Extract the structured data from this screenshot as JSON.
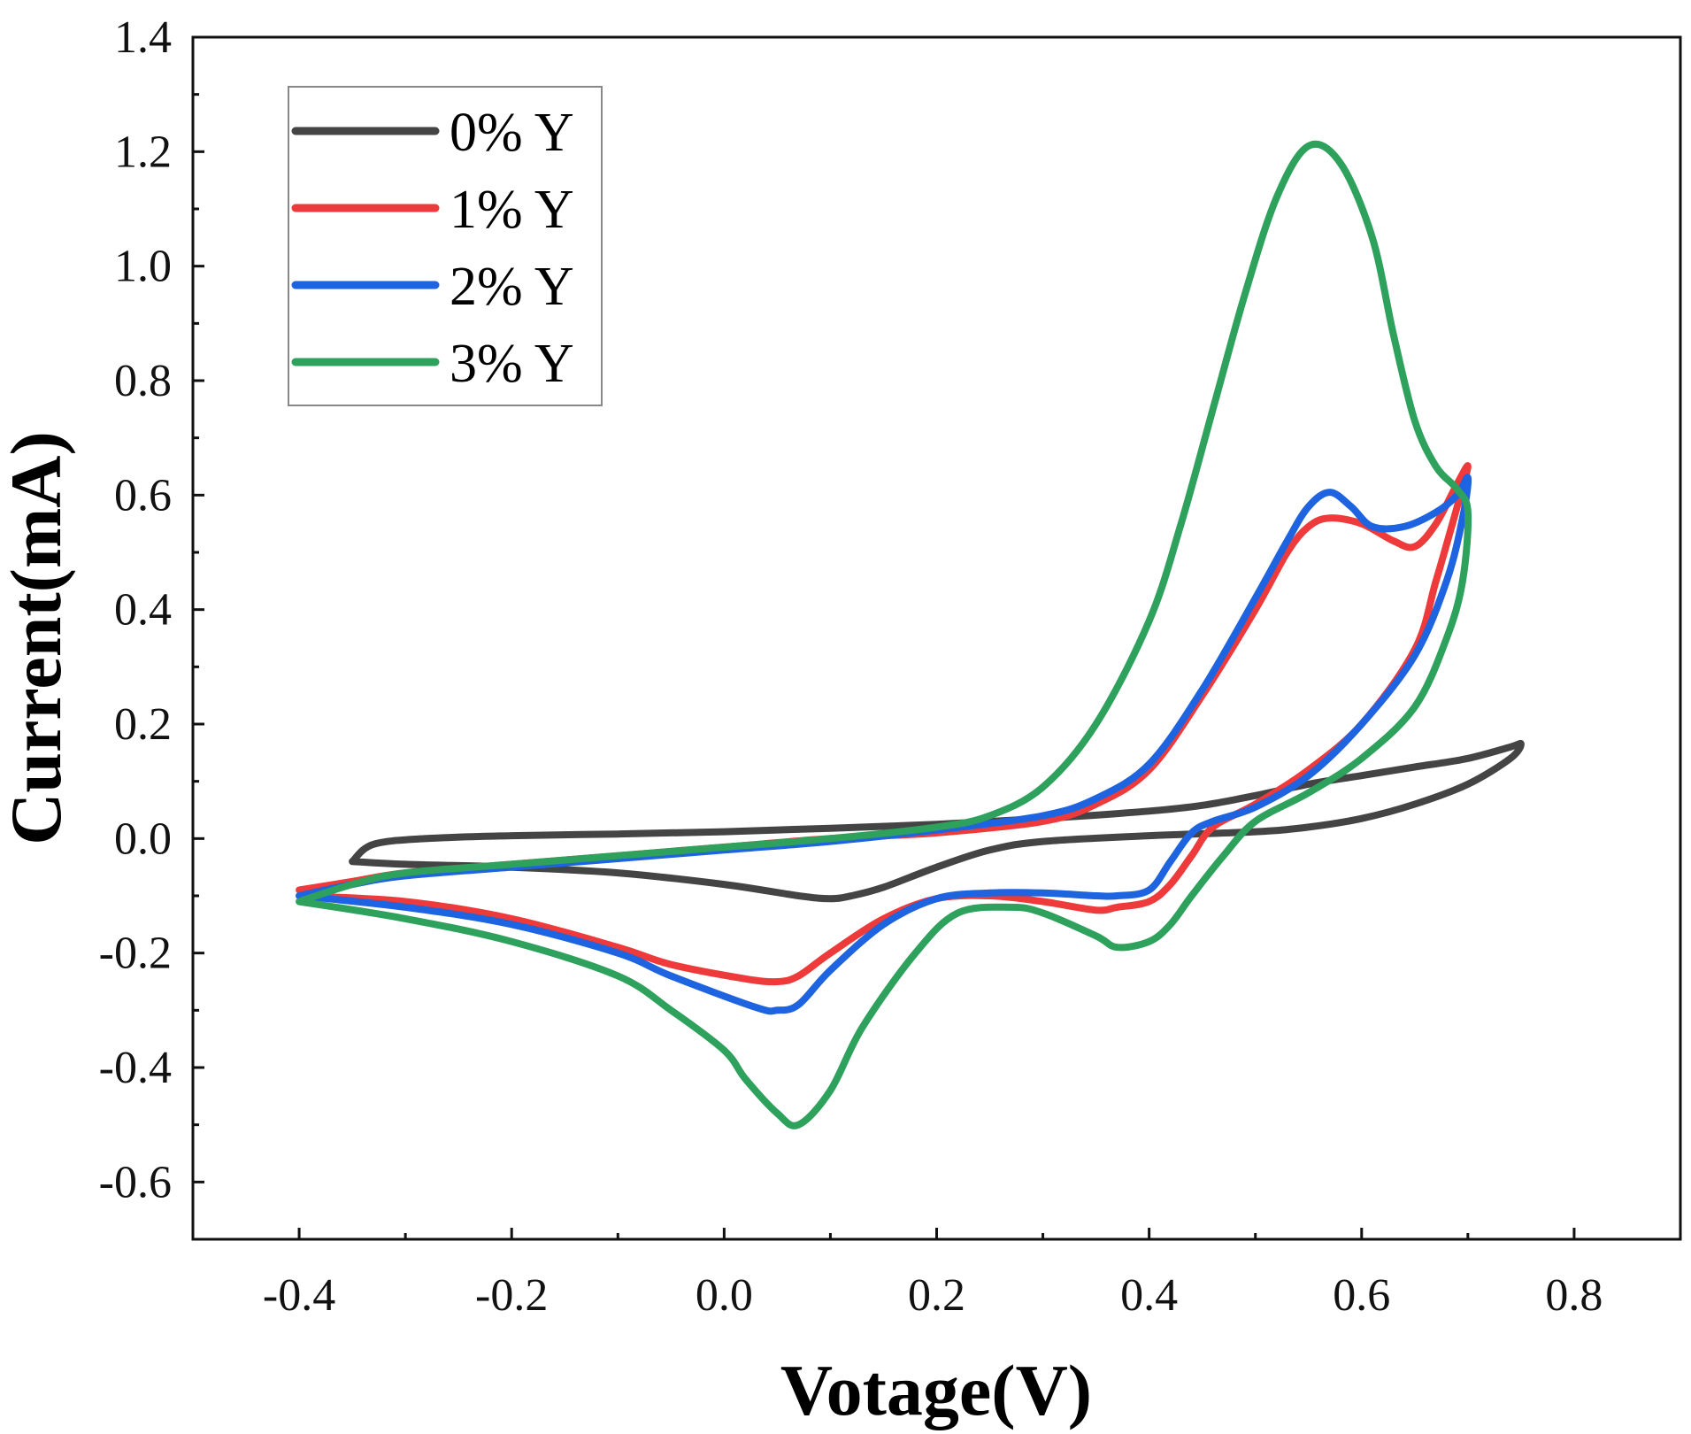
{
  "chart_data": {
    "type": "line",
    "title": "",
    "xlabel": "Votage(V)",
    "ylabel": "Current(mA)",
    "xlim": [
      -0.5,
      0.9
    ],
    "ylim": [
      -0.7,
      1.4
    ],
    "xticks": [
      "-0.4",
      "-0.2",
      "0.0",
      "0.2",
      "0.4",
      "0.6",
      "0.8"
    ],
    "xtick_values": [
      -0.4,
      -0.2,
      0.0,
      0.2,
      0.4,
      0.6,
      0.8
    ],
    "yticks": [
      "-0.6",
      "-0.4",
      "-0.2",
      "0.0",
      "0.2",
      "0.4",
      "0.6",
      "0.8",
      "1.0",
      "1.2",
      "1.4"
    ],
    "ytick_values": [
      -0.6,
      -0.4,
      -0.2,
      0.0,
      0.2,
      0.4,
      0.6,
      0.8,
      1.0,
      1.2,
      1.4
    ],
    "grid": false,
    "legend_position": "top-left",
    "series": [
      {
        "name": "0% Y",
        "color": "#444444",
        "points": [
          [
            -0.35,
            -0.04
          ],
          [
            -0.33,
            -0.01
          ],
          [
            -0.28,
            0.0
          ],
          [
            -0.2,
            0.005
          ],
          [
            -0.1,
            0.008
          ],
          [
            0.0,
            0.012
          ],
          [
            0.1,
            0.018
          ],
          [
            0.2,
            0.025
          ],
          [
            0.3,
            0.035
          ],
          [
            0.4,
            0.048
          ],
          [
            0.45,
            0.058
          ],
          [
            0.5,
            0.075
          ],
          [
            0.55,
            0.095
          ],
          [
            0.6,
            0.11
          ],
          [
            0.65,
            0.125
          ],
          [
            0.7,
            0.14
          ],
          [
            0.74,
            0.16
          ],
          [
            0.75,
            0.165
          ],
          [
            0.74,
            0.14
          ],
          [
            0.7,
            0.095
          ],
          [
            0.65,
            0.06
          ],
          [
            0.6,
            0.035
          ],
          [
            0.55,
            0.02
          ],
          [
            0.5,
            0.012
          ],
          [
            0.4,
            0.005
          ],
          [
            0.3,
            -0.005
          ],
          [
            0.25,
            -0.02
          ],
          [
            0.2,
            -0.05
          ],
          [
            0.15,
            -0.085
          ],
          [
            0.12,
            -0.1
          ],
          [
            0.1,
            -0.105
          ],
          [
            0.07,
            -0.1
          ],
          [
            0.0,
            -0.08
          ],
          [
            -0.1,
            -0.06
          ],
          [
            -0.2,
            -0.05
          ],
          [
            -0.3,
            -0.045
          ],
          [
            -0.35,
            -0.04
          ]
        ]
      },
      {
        "name": "1% Y",
        "color": "#ee3a3a",
        "points": [
          [
            -0.4,
            -0.09
          ],
          [
            -0.35,
            -0.075
          ],
          [
            -0.3,
            -0.06
          ],
          [
            -0.2,
            -0.045
          ],
          [
            -0.1,
            -0.03
          ],
          [
            0.0,
            -0.015
          ],
          [
            0.1,
            0.0
          ],
          [
            0.2,
            0.01
          ],
          [
            0.3,
            0.03
          ],
          [
            0.35,
            0.06
          ],
          [
            0.4,
            0.12
          ],
          [
            0.45,
            0.25
          ],
          [
            0.5,
            0.4
          ],
          [
            0.53,
            0.5
          ],
          [
            0.55,
            0.545
          ],
          [
            0.57,
            0.56
          ],
          [
            0.6,
            0.55
          ],
          [
            0.63,
            0.52
          ],
          [
            0.65,
            0.51
          ],
          [
            0.67,
            0.55
          ],
          [
            0.69,
            0.62
          ],
          [
            0.7,
            0.65
          ],
          [
            0.69,
            0.58
          ],
          [
            0.67,
            0.45
          ],
          [
            0.65,
            0.33
          ],
          [
            0.6,
            0.2
          ],
          [
            0.55,
            0.12
          ],
          [
            0.5,
            0.06
          ],
          [
            0.46,
            0.02
          ],
          [
            0.44,
            -0.03
          ],
          [
            0.42,
            -0.08
          ],
          [
            0.4,
            -0.11
          ],
          [
            0.37,
            -0.12
          ],
          [
            0.35,
            -0.125
          ],
          [
            0.3,
            -0.11
          ],
          [
            0.25,
            -0.1
          ],
          [
            0.2,
            -0.105
          ],
          [
            0.15,
            -0.14
          ],
          [
            0.1,
            -0.2
          ],
          [
            0.07,
            -0.24
          ],
          [
            0.05,
            -0.25
          ],
          [
            0.02,
            -0.245
          ],
          [
            -0.05,
            -0.22
          ],
          [
            -0.1,
            -0.19
          ],
          [
            -0.2,
            -0.14
          ],
          [
            -0.3,
            -0.11
          ],
          [
            -0.4,
            -0.1
          ]
        ]
      },
      {
        "name": "2% Y",
        "color": "#1e63e0",
        "points": [
          [
            -0.4,
            -0.1
          ],
          [
            -0.35,
            -0.08
          ],
          [
            -0.3,
            -0.065
          ],
          [
            -0.2,
            -0.05
          ],
          [
            -0.1,
            -0.035
          ],
          [
            0.0,
            -0.02
          ],
          [
            0.1,
            -0.005
          ],
          [
            0.2,
            0.015
          ],
          [
            0.3,
            0.04
          ],
          [
            0.35,
            0.07
          ],
          [
            0.4,
            0.13
          ],
          [
            0.45,
            0.26
          ],
          [
            0.5,
            0.42
          ],
          [
            0.53,
            0.52
          ],
          [
            0.55,
            0.58
          ],
          [
            0.57,
            0.605
          ],
          [
            0.59,
            0.58
          ],
          [
            0.61,
            0.545
          ],
          [
            0.64,
            0.545
          ],
          [
            0.67,
            0.57
          ],
          [
            0.69,
            0.6
          ],
          [
            0.7,
            0.63
          ],
          [
            0.695,
            0.56
          ],
          [
            0.68,
            0.45
          ],
          [
            0.65,
            0.32
          ],
          [
            0.6,
            0.2
          ],
          [
            0.55,
            0.11
          ],
          [
            0.5,
            0.055
          ],
          [
            0.46,
            0.03
          ],
          [
            0.44,
            0.01
          ],
          [
            0.42,
            -0.04
          ],
          [
            0.4,
            -0.09
          ],
          [
            0.37,
            -0.1
          ],
          [
            0.35,
            -0.1
          ],
          [
            0.3,
            -0.095
          ],
          [
            0.25,
            -0.095
          ],
          [
            0.2,
            -0.105
          ],
          [
            0.15,
            -0.15
          ],
          [
            0.1,
            -0.23
          ],
          [
            0.07,
            -0.29
          ],
          [
            0.05,
            -0.3
          ],
          [
            0.03,
            -0.295
          ],
          [
            -0.05,
            -0.24
          ],
          [
            -0.1,
            -0.2
          ],
          [
            -0.2,
            -0.15
          ],
          [
            -0.3,
            -0.12
          ],
          [
            -0.4,
            -0.1
          ]
        ]
      },
      {
        "name": "3% Y",
        "color": "#2ea15c",
        "points": [
          [
            -0.4,
            -0.11
          ],
          [
            -0.35,
            -0.08
          ],
          [
            -0.3,
            -0.06
          ],
          [
            -0.2,
            -0.045
          ],
          [
            -0.1,
            -0.03
          ],
          [
            0.0,
            -0.015
          ],
          [
            0.1,
            0.0
          ],
          [
            0.2,
            0.02
          ],
          [
            0.25,
            0.04
          ],
          [
            0.3,
            0.09
          ],
          [
            0.35,
            0.2
          ],
          [
            0.4,
            0.38
          ],
          [
            0.43,
            0.55
          ],
          [
            0.46,
            0.75
          ],
          [
            0.49,
            0.95
          ],
          [
            0.52,
            1.12
          ],
          [
            0.55,
            1.21
          ],
          [
            0.58,
            1.18
          ],
          [
            0.61,
            1.05
          ],
          [
            0.63,
            0.88
          ],
          [
            0.65,
            0.73
          ],
          [
            0.67,
            0.65
          ],
          [
            0.69,
            0.61
          ],
          [
            0.7,
            0.57
          ],
          [
            0.695,
            0.45
          ],
          [
            0.68,
            0.35
          ],
          [
            0.65,
            0.23
          ],
          [
            0.6,
            0.14
          ],
          [
            0.55,
            0.08
          ],
          [
            0.5,
            0.03
          ],
          [
            0.47,
            -0.03
          ],
          [
            0.44,
            -0.1
          ],
          [
            0.42,
            -0.15
          ],
          [
            0.4,
            -0.18
          ],
          [
            0.37,
            -0.19
          ],
          [
            0.35,
            -0.17
          ],
          [
            0.3,
            -0.13
          ],
          [
            0.27,
            -0.12
          ],
          [
            0.22,
            -0.13
          ],
          [
            0.18,
            -0.2
          ],
          [
            0.13,
            -0.33
          ],
          [
            0.1,
            -0.44
          ],
          [
            0.07,
            -0.5
          ],
          [
            0.05,
            -0.48
          ],
          [
            0.02,
            -0.42
          ],
          [
            0.0,
            -0.37
          ],
          [
            -0.05,
            -0.3
          ],
          [
            -0.1,
            -0.24
          ],
          [
            -0.2,
            -0.18
          ],
          [
            -0.3,
            -0.14
          ],
          [
            -0.4,
            -0.11
          ]
        ]
      }
    ]
  }
}
